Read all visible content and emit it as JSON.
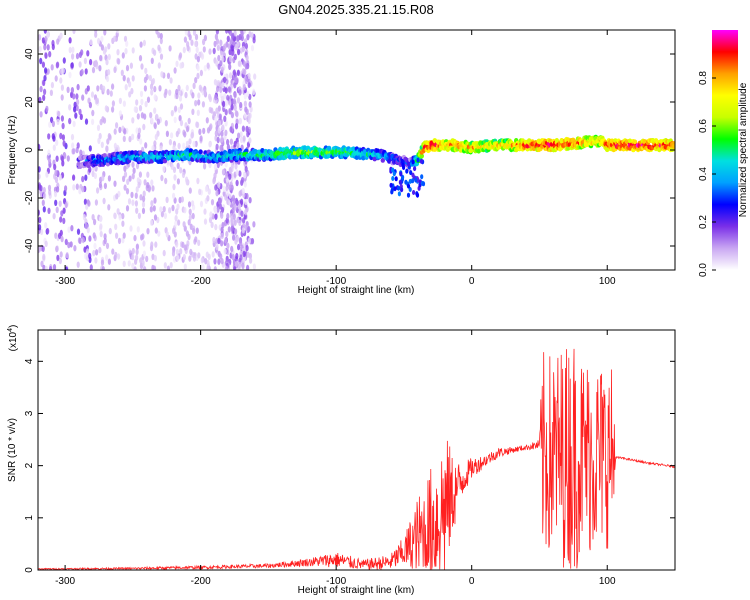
{
  "title": "GN04.2025.335.21.15.R08",
  "chart_data": [
    {
      "type": "heatmap",
      "name": "spectrogram",
      "xlabel": "Height of straight line (km)",
      "ylabel": "Frequency (Hz)",
      "xlim": [
        -320,
        150
      ],
      "ylim": [
        -50,
        50
      ],
      "xticks": [
        -300,
        -200,
        -100,
        0,
        100
      ],
      "yticks": [
        -40,
        -20,
        0,
        20,
        40
      ],
      "colorbar": {
        "label": "Normalized spectral amplitude",
        "range": [
          0.0,
          1.0
        ],
        "ticks": [
          0.0,
          0.2,
          0.4,
          0.6,
          0.8
        ],
        "tick_labels": [
          "0.0",
          "0.2",
          "0.4",
          "0.6",
          "0.8"
        ],
        "colormap": [
          "#ffffff",
          "#c9a6f2",
          "#7a2fe8",
          "#0000ff",
          "#00a0ff",
          "#00e0e0",
          "#00ff00",
          "#c8ff00",
          "#ffff00",
          "#ffa000",
          "#ff0000",
          "#ff00ff"
        ]
      },
      "ridge": {
        "x": [
          -290,
          -270,
          -250,
          -230,
          -210,
          -190,
          -170,
          -150,
          -130,
          -110,
          -90,
          -70,
          -55,
          -45,
          -40,
          -35,
          -30,
          -20,
          -10,
          0,
          20,
          40,
          60,
          80,
          95,
          100,
          110,
          130,
          150
        ],
        "freq": [
          -5,
          -4,
          -3,
          -3,
          -2,
          -3,
          -2,
          -2,
          -1,
          -1,
          -1,
          -2,
          -4,
          -6,
          -4,
          1,
          2,
          2,
          2,
          1,
          2,
          2,
          2,
          3,
          4,
          2,
          2,
          2,
          2
        ],
        "amplitude": [
          0.3,
          0.4,
          0.45,
          0.45,
          0.5,
          0.45,
          0.5,
          0.55,
          0.6,
          0.6,
          0.55,
          0.45,
          0.35,
          0.3,
          0.6,
          0.9,
          0.95,
          0.8,
          0.85,
          0.8,
          0.75,
          0.9,
          0.95,
          0.85,
          0.8,
          0.9,
          0.95,
          0.95,
          0.9
        ]
      },
      "noise_region": {
        "x_range": [
          -320,
          -160
        ],
        "note": "scattered low-amplitude noise"
      }
    },
    {
      "type": "line",
      "name": "snr",
      "xlabel": "Height of straight line (km)",
      "ylabel": "SNR (10 * v/v)",
      "scale_label_base": "(x10",
      "scale_label_exp": "4",
      "scale_label_end": ")",
      "xlim": [
        -320,
        150
      ],
      "ylim": [
        0,
        4.6
      ],
      "xticks": [
        -300,
        -200,
        -100,
        0,
        100
      ],
      "yticks": [
        0,
        1,
        2,
        3,
        4
      ],
      "color": "#ff2020",
      "envelope": {
        "x": [
          -320,
          -250,
          -200,
          -150,
          -120,
          -100,
          -80,
          -60,
          -50,
          -40,
          -30,
          -25,
          -20,
          -15,
          -10,
          -5,
          0,
          10,
          20,
          30,
          40,
          50,
          52,
          60,
          70,
          75,
          80,
          90,
          100,
          105,
          106,
          110,
          130,
          150
        ],
        "base": [
          0.02,
          0.03,
          0.05,
          0.08,
          0.15,
          0.2,
          0.1,
          0.15,
          0.35,
          0.6,
          0.8,
          1.0,
          1.2,
          1.4,
          1.6,
          1.8,
          1.95,
          2.1,
          2.25,
          2.3,
          2.35,
          2.4,
          2.2,
          2.2,
          2.2,
          2.2,
          2.2,
          2.2,
          2.2,
          2.2,
          2.15,
          2.15,
          2.05,
          1.98
        ],
        "noise": [
          0.01,
          0.02,
          0.03,
          0.04,
          0.08,
          0.15,
          0.1,
          0.15,
          0.3,
          0.8,
          1.2,
          1.3,
          1.5,
          0.9,
          0.5,
          0.3,
          0.2,
          0.12,
          0.1,
          0.06,
          0.05,
          0.1,
          2.0,
          2.0,
          2.2,
          2.4,
          2.0,
          1.9,
          1.8,
          1.7,
          0.03,
          0.02,
          0.02,
          0.02
        ]
      }
    }
  ]
}
